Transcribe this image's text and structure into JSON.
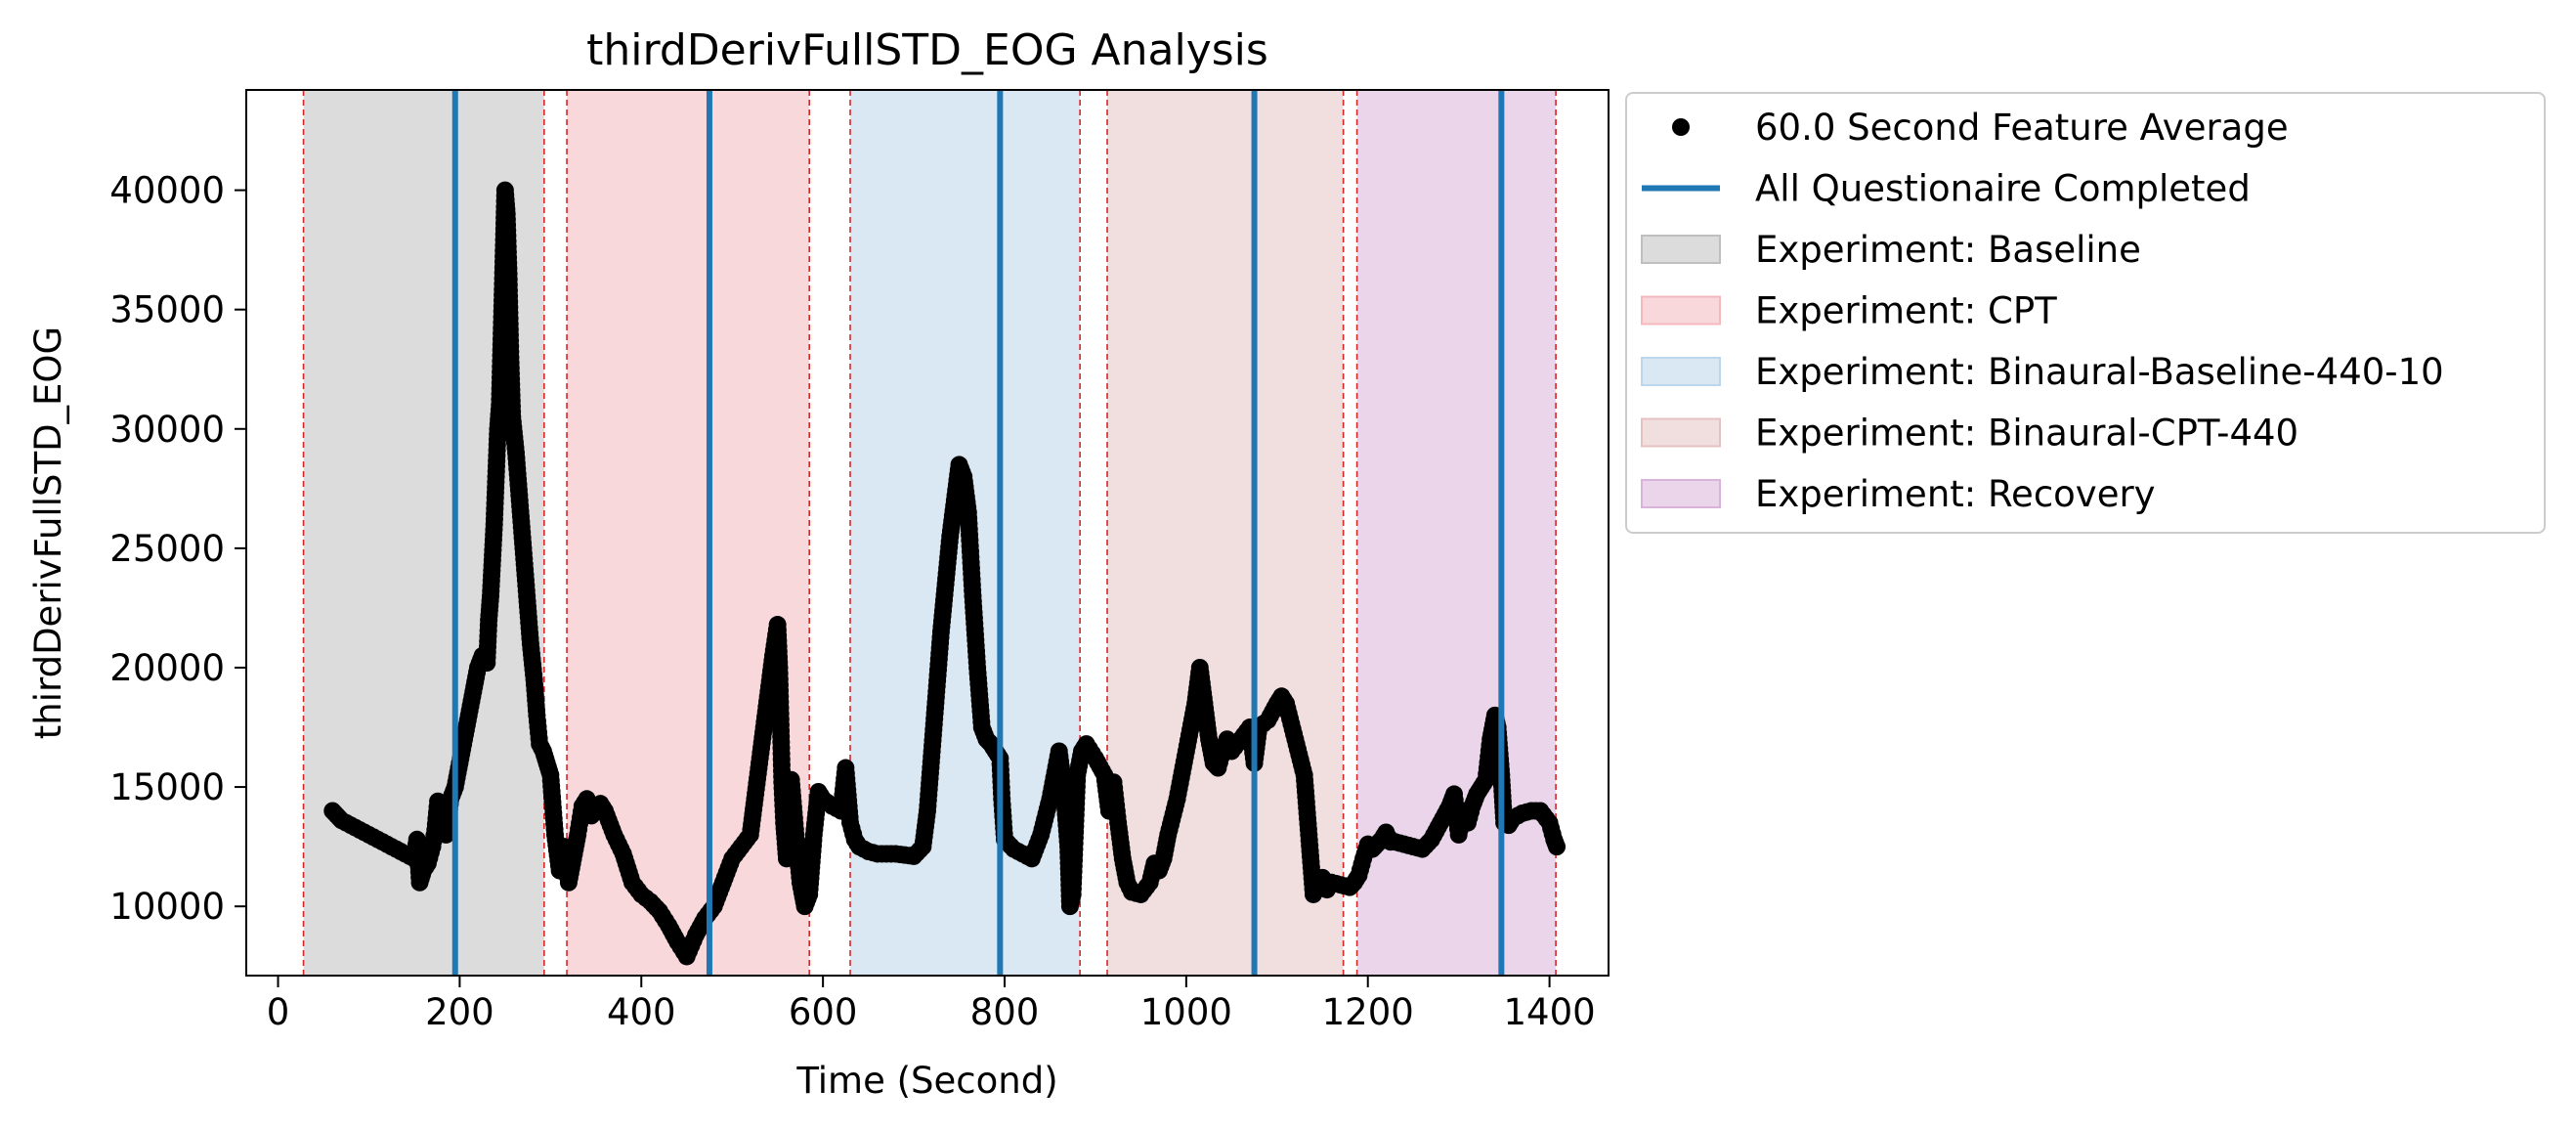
{
  "chart_data": {
    "type": "scatter",
    "title": "thirdDerivFullSTD_EOG Analysis",
    "xlabel": "Time (Second)",
    "ylabel": "thirdDerivFullSTD_EOG",
    "xlim": [
      -35,
      1465
    ],
    "ylim": [
      7100,
      44200
    ],
    "xticks": [
      0,
      200,
      400,
      600,
      800,
      1000,
      1200,
      1400
    ],
    "yticks": [
      10000,
      15000,
      20000,
      25000,
      30000,
      35000,
      40000
    ],
    "grid": false,
    "legend_position": "outside-right-top",
    "colors": {
      "points": "#000000",
      "questionnaire_line": "#1f77b4",
      "boundary_line": "#d62728"
    },
    "legend": [
      {
        "label": "60.0 Second Feature Average",
        "kind": "marker",
        "color": "#000000"
      },
      {
        "label": "All Questionaire Completed",
        "kind": "line",
        "color": "#1f77b4"
      },
      {
        "label": "Experiment: Baseline",
        "kind": "patch",
        "color": "#bfbfbf"
      },
      {
        "label": "Experiment: CPT",
        "kind": "patch",
        "color": "#f4b8bd"
      },
      {
        "label": "Experiment: Binaural-Baseline-440-10",
        "kind": "patch",
        "color": "#bcd6ea"
      },
      {
        "label": "Experiment: Binaural-CPT-440",
        "kind": "patch",
        "color": "#e5c2c2"
      },
      {
        "label": "Experiment: Recovery",
        "kind": "patch",
        "color": "#d9b3d9"
      }
    ],
    "phases": [
      {
        "name": "Experiment: Baseline",
        "start": 28,
        "end": 293,
        "color": "#bfbfbf"
      },
      {
        "name": "Experiment: CPT",
        "start": 318,
        "end": 585,
        "color": "#f4b8bd"
      },
      {
        "name": "Experiment: Binaural-Baseline-440-10",
        "start": 630,
        "end": 883,
        "color": "#bcd6ea"
      },
      {
        "name": "Experiment: Binaural-CPT-440",
        "start": 913,
        "end": 1173,
        "color": "#e5c2c2"
      },
      {
        "name": "Experiment: Recovery",
        "start": 1188,
        "end": 1407,
        "color": "#d9b3d9"
      }
    ],
    "questionnaire_completed": [
      195,
      475,
      795,
      1075,
      1347
    ],
    "series": [
      {
        "name": "60.0 Second Feature Average",
        "points": [
          [
            60,
            14000
          ],
          [
            65,
            13800
          ],
          [
            70,
            13600
          ],
          [
            80,
            13400
          ],
          [
            90,
            13200
          ],
          [
            100,
            13000
          ],
          [
            110,
            12800
          ],
          [
            120,
            12600
          ],
          [
            130,
            12400
          ],
          [
            140,
            12200
          ],
          [
            150,
            12000
          ],
          [
            153,
            12800
          ],
          [
            156,
            11000
          ],
          [
            160,
            11500
          ],
          [
            165,
            11800
          ],
          [
            170,
            12500
          ],
          [
            173,
            13200
          ],
          [
            176,
            14400
          ],
          [
            180,
            14000
          ],
          [
            185,
            13000
          ],
          [
            190,
            14500
          ],
          [
            195,
            15000
          ],
          [
            200,
            16000
          ],
          [
            205,
            17000
          ],
          [
            210,
            18000
          ],
          [
            215,
            19000
          ],
          [
            220,
            20000
          ],
          [
            225,
            20500
          ],
          [
            230,
            20200
          ],
          [
            232,
            22000
          ],
          [
            234,
            23000
          ],
          [
            236,
            24500
          ],
          [
            238,
            26000
          ],
          [
            240,
            28000
          ],
          [
            242,
            30000
          ],
          [
            244,
            31000
          ],
          [
            246,
            34000
          ],
          [
            248,
            37000
          ],
          [
            250,
            40000
          ],
          [
            252,
            39000
          ],
          [
            254,
            36500
          ],
          [
            256,
            33000
          ],
          [
            258,
            30500
          ],
          [
            262,
            29000
          ],
          [
            266,
            27000
          ],
          [
            270,
            25000
          ],
          [
            274,
            23000
          ],
          [
            278,
            21000
          ],
          [
            282,
            19500
          ],
          [
            285,
            18000
          ],
          [
            288,
            16800
          ],
          [
            292,
            16500
          ],
          [
            296,
            16000
          ],
          [
            300,
            15500
          ],
          [
            305,
            13000
          ],
          [
            310,
            11500
          ],
          [
            315,
            12500
          ],
          [
            320,
            11000
          ],
          [
            325,
            12000
          ],
          [
            330,
            13000
          ],
          [
            335,
            14200
          ],
          [
            340,
            14500
          ],
          [
            345,
            13800
          ],
          [
            350,
            14000
          ],
          [
            355,
            14300
          ],
          [
            360,
            14000
          ],
          [
            370,
            13000
          ],
          [
            380,
            12200
          ],
          [
            390,
            11000
          ],
          [
            400,
            10500
          ],
          [
            410,
            10200
          ],
          [
            420,
            9800
          ],
          [
            430,
            9200
          ],
          [
            440,
            8500
          ],
          [
            450,
            7900
          ],
          [
            460,
            8800
          ],
          [
            470,
            9500
          ],
          [
            480,
            10000
          ],
          [
            490,
            11000
          ],
          [
            500,
            12000
          ],
          [
            510,
            12500
          ],
          [
            520,
            13000
          ],
          [
            525,
            14500
          ],
          [
            530,
            16000
          ],
          [
            535,
            17500
          ],
          [
            540,
            19000
          ],
          [
            545,
            20500
          ],
          [
            550,
            21800
          ],
          [
            552,
            20000
          ],
          [
            555,
            15200
          ],
          [
            557,
            13500
          ],
          [
            560,
            12000
          ],
          [
            562,
            15000
          ],
          [
            565,
            15300
          ],
          [
            570,
            13000
          ],
          [
            575,
            11000
          ],
          [
            580,
            10000
          ],
          [
            585,
            10500
          ],
          [
            590,
            13000
          ],
          [
            595,
            14800
          ],
          [
            600,
            14500
          ],
          [
            610,
            14200
          ],
          [
            620,
            14000
          ],
          [
            625,
            15800
          ],
          [
            630,
            13500
          ],
          [
            635,
            12800
          ],
          [
            640,
            12500
          ],
          [
            650,
            12300
          ],
          [
            660,
            12200
          ],
          [
            680,
            12200
          ],
          [
            700,
            12100
          ],
          [
            710,
            12500
          ],
          [
            715,
            14000
          ],
          [
            720,
            16500
          ],
          [
            725,
            19000
          ],
          [
            730,
            21500
          ],
          [
            735,
            23500
          ],
          [
            740,
            25500
          ],
          [
            745,
            27000
          ],
          [
            750,
            28500
          ],
          [
            755,
            28000
          ],
          [
            760,
            26500
          ],
          [
            765,
            23000
          ],
          [
            770,
            20000
          ],
          [
            775,
            17500
          ],
          [
            780,
            17000
          ],
          [
            785,
            16800
          ],
          [
            790,
            16500
          ],
          [
            795,
            16200
          ],
          [
            797,
            14500
          ],
          [
            800,
            12800
          ],
          [
            810,
            12400
          ],
          [
            820,
            12200
          ],
          [
            830,
            12000
          ],
          [
            840,
            13000
          ],
          [
            850,
            14500
          ],
          [
            860,
            16500
          ],
          [
            865,
            15000
          ],
          [
            870,
            12500
          ],
          [
            872,
            10000
          ],
          [
            875,
            10500
          ],
          [
            880,
            15500
          ],
          [
            885,
            16500
          ],
          [
            890,
            16800
          ],
          [
            900,
            16200
          ],
          [
            910,
            15500
          ],
          [
            915,
            14000
          ],
          [
            920,
            15200
          ],
          [
            925,
            13500
          ],
          [
            930,
            12000
          ],
          [
            935,
            11000
          ],
          [
            940,
            10600
          ],
          [
            950,
            10500
          ],
          [
            960,
            11000
          ],
          [
            965,
            11800
          ],
          [
            970,
            11500
          ],
          [
            975,
            12000
          ],
          [
            980,
            13000
          ],
          [
            990,
            14500
          ],
          [
            1000,
            16500
          ],
          [
            1010,
            18500
          ],
          [
            1015,
            20000
          ],
          [
            1020,
            18500
          ],
          [
            1025,
            17000
          ],
          [
            1030,
            16000
          ],
          [
            1035,
            15800
          ],
          [
            1040,
            16500
          ],
          [
            1045,
            17000
          ],
          [
            1050,
            16500
          ],
          [
            1060,
            17000
          ],
          [
            1070,
            17500
          ],
          [
            1075,
            16000
          ],
          [
            1080,
            17500
          ],
          [
            1090,
            17800
          ],
          [
            1100,
            18500
          ],
          [
            1105,
            18800
          ],
          [
            1110,
            18500
          ],
          [
            1120,
            17000
          ],
          [
            1130,
            15500
          ],
          [
            1135,
            13000
          ],
          [
            1140,
            10500
          ],
          [
            1145,
            10800
          ],
          [
            1150,
            11200
          ],
          [
            1155,
            10700
          ],
          [
            1160,
            11000
          ],
          [
            1170,
            10900
          ],
          [
            1180,
            10800
          ],
          [
            1185,
            11000
          ],
          [
            1190,
            11300
          ],
          [
            1195,
            12000
          ],
          [
            1200,
            12600
          ],
          [
            1205,
            12400
          ],
          [
            1210,
            12600
          ],
          [
            1215,
            12800
          ],
          [
            1220,
            13100
          ],
          [
            1225,
            12700
          ],
          [
            1230,
            12700
          ],
          [
            1240,
            12600
          ],
          [
            1250,
            12500
          ],
          [
            1260,
            12400
          ],
          [
            1270,
            12800
          ],
          [
            1280,
            13500
          ],
          [
            1290,
            14200
          ],
          [
            1295,
            14700
          ],
          [
            1300,
            13000
          ],
          [
            1305,
            14000
          ],
          [
            1310,
            13500
          ],
          [
            1315,
            14200
          ],
          [
            1320,
            14700
          ],
          [
            1325,
            15000
          ],
          [
            1330,
            15300
          ],
          [
            1335,
            17000
          ],
          [
            1340,
            18000
          ],
          [
            1343,
            17500
          ],
          [
            1347,
            15500
          ],
          [
            1350,
            13500
          ],
          [
            1355,
            13400
          ],
          [
            1360,
            13700
          ],
          [
            1370,
            13900
          ],
          [
            1380,
            14000
          ],
          [
            1390,
            14000
          ],
          [
            1400,
            13500
          ],
          [
            1405,
            12800
          ],
          [
            1408,
            12500
          ]
        ]
      }
    ]
  }
}
